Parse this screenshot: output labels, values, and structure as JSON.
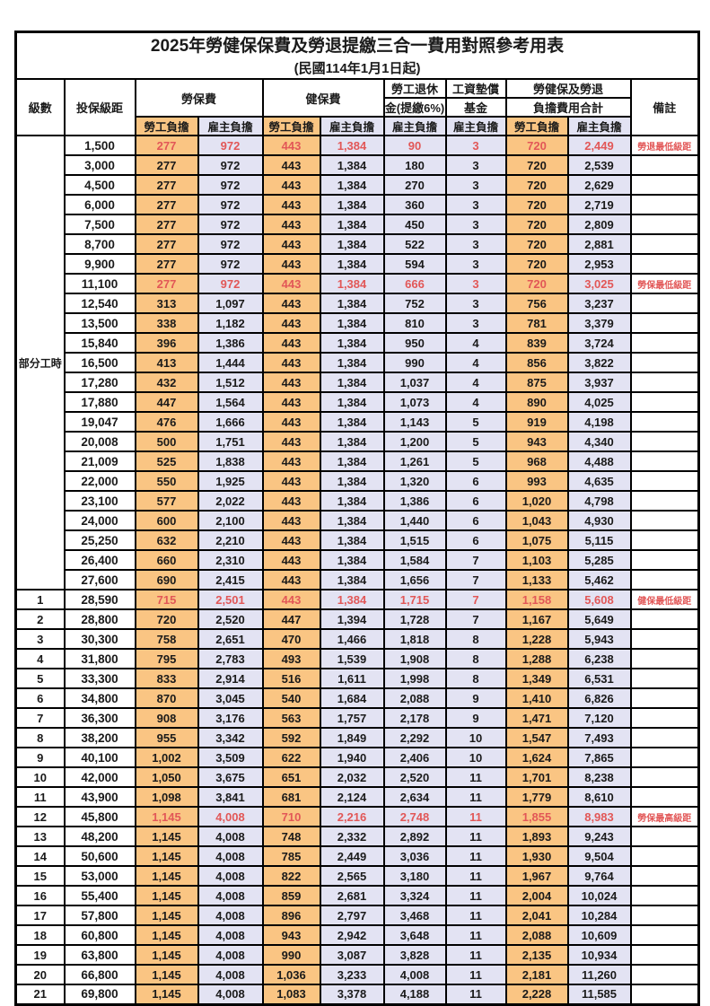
{
  "table": {
    "title": "2025年勞健保保費及勞退提繳三合一費用對照參考用表",
    "subtitle": "(民國114年1月1日起)",
    "headers": {
      "level": "級數",
      "bracket": "投保級距",
      "labor_insurance": "勞保費",
      "health_insurance": "健保費",
      "pension_line1": "勞工退休",
      "pension_line2": "金(提繳6%)",
      "wage_fund_line1": "工資墊償",
      "wage_fund_line2": "基金",
      "total_line1": "勞健保及勞退",
      "total_line2": "負擔費用合計",
      "remark": "備註",
      "employee": "勞工負擔",
      "employer": "雇主負擔"
    },
    "part_time_label": "部分工時",
    "part_time_span": 23,
    "value_column_keys": [
      "labor-employee",
      "labor-employer",
      "health-employee",
      "health-employer",
      "pension-employer",
      "fund-employer",
      "total-employee",
      "total-employer"
    ],
    "rows": [
      {
        "level": null,
        "bracket": "1,500",
        "values": [
          "277",
          "972",
          "443",
          "1,384",
          "90",
          "3",
          "720",
          "2,449"
        ],
        "note": "勞退最低級距",
        "highlight": true
      },
      {
        "level": null,
        "bracket": "3,000",
        "values": [
          "277",
          "972",
          "443",
          "1,384",
          "180",
          "3",
          "720",
          "2,539"
        ],
        "note": "",
        "highlight": false
      },
      {
        "level": null,
        "bracket": "4,500",
        "values": [
          "277",
          "972",
          "443",
          "1,384",
          "270",
          "3",
          "720",
          "2,629"
        ],
        "note": "",
        "highlight": false
      },
      {
        "level": null,
        "bracket": "6,000",
        "values": [
          "277",
          "972",
          "443",
          "1,384",
          "360",
          "3",
          "720",
          "2,719"
        ],
        "note": "",
        "highlight": false
      },
      {
        "level": null,
        "bracket": "7,500",
        "values": [
          "277",
          "972",
          "443",
          "1,384",
          "450",
          "3",
          "720",
          "2,809"
        ],
        "note": "",
        "highlight": false
      },
      {
        "level": null,
        "bracket": "8,700",
        "values": [
          "277",
          "972",
          "443",
          "1,384",
          "522",
          "3",
          "720",
          "2,881"
        ],
        "note": "",
        "highlight": false
      },
      {
        "level": null,
        "bracket": "9,900",
        "values": [
          "277",
          "972",
          "443",
          "1,384",
          "594",
          "3",
          "720",
          "2,953"
        ],
        "note": "",
        "highlight": false
      },
      {
        "level": null,
        "bracket": "11,100",
        "values": [
          "277",
          "972",
          "443",
          "1,384",
          "666",
          "3",
          "720",
          "3,025"
        ],
        "note": "勞保最低級距",
        "highlight": true
      },
      {
        "level": null,
        "bracket": "12,540",
        "values": [
          "313",
          "1,097",
          "443",
          "1,384",
          "752",
          "3",
          "756",
          "3,237"
        ],
        "note": "",
        "highlight": false
      },
      {
        "level": null,
        "bracket": "13,500",
        "values": [
          "338",
          "1,182",
          "443",
          "1,384",
          "810",
          "3",
          "781",
          "3,379"
        ],
        "note": "",
        "highlight": false
      },
      {
        "level": null,
        "bracket": "15,840",
        "values": [
          "396",
          "1,386",
          "443",
          "1,384",
          "950",
          "4",
          "839",
          "3,724"
        ],
        "note": "",
        "highlight": false
      },
      {
        "level": null,
        "bracket": "16,500",
        "values": [
          "413",
          "1,444",
          "443",
          "1,384",
          "990",
          "4",
          "856",
          "3,822"
        ],
        "note": "",
        "highlight": false
      },
      {
        "level": null,
        "bracket": "17,280",
        "values": [
          "432",
          "1,512",
          "443",
          "1,384",
          "1,037",
          "4",
          "875",
          "3,937"
        ],
        "note": "",
        "highlight": false
      },
      {
        "level": null,
        "bracket": "17,880",
        "values": [
          "447",
          "1,564",
          "443",
          "1,384",
          "1,073",
          "4",
          "890",
          "4,025"
        ],
        "note": "",
        "highlight": false
      },
      {
        "level": null,
        "bracket": "19,047",
        "values": [
          "476",
          "1,666",
          "443",
          "1,384",
          "1,143",
          "5",
          "919",
          "4,198"
        ],
        "note": "",
        "highlight": false
      },
      {
        "level": null,
        "bracket": "20,008",
        "values": [
          "500",
          "1,751",
          "443",
          "1,384",
          "1,200",
          "5",
          "943",
          "4,340"
        ],
        "note": "",
        "highlight": false
      },
      {
        "level": null,
        "bracket": "21,009",
        "values": [
          "525",
          "1,838",
          "443",
          "1,384",
          "1,261",
          "5",
          "968",
          "4,488"
        ],
        "note": "",
        "highlight": false
      },
      {
        "level": null,
        "bracket": "22,000",
        "values": [
          "550",
          "1,925",
          "443",
          "1,384",
          "1,320",
          "6",
          "993",
          "4,635"
        ],
        "note": "",
        "highlight": false
      },
      {
        "level": null,
        "bracket": "23,100",
        "values": [
          "577",
          "2,022",
          "443",
          "1,384",
          "1,386",
          "6",
          "1,020",
          "4,798"
        ],
        "note": "",
        "highlight": false
      },
      {
        "level": null,
        "bracket": "24,000",
        "values": [
          "600",
          "2,100",
          "443",
          "1,384",
          "1,440",
          "6",
          "1,043",
          "4,930"
        ],
        "note": "",
        "highlight": false
      },
      {
        "level": null,
        "bracket": "25,250",
        "values": [
          "632",
          "2,210",
          "443",
          "1,384",
          "1,515",
          "6",
          "1,075",
          "5,115"
        ],
        "note": "",
        "highlight": false
      },
      {
        "level": null,
        "bracket": "26,400",
        "values": [
          "660",
          "2,310",
          "443",
          "1,384",
          "1,584",
          "7",
          "1,103",
          "5,285"
        ],
        "note": "",
        "highlight": false
      },
      {
        "level": null,
        "bracket": "27,600",
        "values": [
          "690",
          "2,415",
          "443",
          "1,384",
          "1,656",
          "7",
          "1,133",
          "5,462"
        ],
        "note": "",
        "highlight": false
      },
      {
        "level": "1",
        "bracket": "28,590",
        "values": [
          "715",
          "2,501",
          "443",
          "1,384",
          "1,715",
          "7",
          "1,158",
          "5,608"
        ],
        "note": "健保最低級距",
        "highlight": true
      },
      {
        "level": "2",
        "bracket": "28,800",
        "values": [
          "720",
          "2,520",
          "447",
          "1,394",
          "1,728",
          "7",
          "1,167",
          "5,649"
        ],
        "note": "",
        "highlight": false
      },
      {
        "level": "3",
        "bracket": "30,300",
        "values": [
          "758",
          "2,651",
          "470",
          "1,466",
          "1,818",
          "8",
          "1,228",
          "5,943"
        ],
        "note": "",
        "highlight": false
      },
      {
        "level": "4",
        "bracket": "31,800",
        "values": [
          "795",
          "2,783",
          "493",
          "1,539",
          "1,908",
          "8",
          "1,288",
          "6,238"
        ],
        "note": "",
        "highlight": false
      },
      {
        "level": "5",
        "bracket": "33,300",
        "values": [
          "833",
          "2,914",
          "516",
          "1,611",
          "1,998",
          "8",
          "1,349",
          "6,531"
        ],
        "note": "",
        "highlight": false
      },
      {
        "level": "6",
        "bracket": "34,800",
        "values": [
          "870",
          "3,045",
          "540",
          "1,684",
          "2,088",
          "9",
          "1,410",
          "6,826"
        ],
        "note": "",
        "highlight": false
      },
      {
        "level": "7",
        "bracket": "36,300",
        "values": [
          "908",
          "3,176",
          "563",
          "1,757",
          "2,178",
          "9",
          "1,471",
          "7,120"
        ],
        "note": "",
        "highlight": false
      },
      {
        "level": "8",
        "bracket": "38,200",
        "values": [
          "955",
          "3,342",
          "592",
          "1,849",
          "2,292",
          "10",
          "1,547",
          "7,493"
        ],
        "note": "",
        "highlight": false
      },
      {
        "level": "9",
        "bracket": "40,100",
        "values": [
          "1,002",
          "3,509",
          "622",
          "1,940",
          "2,406",
          "10",
          "1,624",
          "7,865"
        ],
        "note": "",
        "highlight": false
      },
      {
        "level": "10",
        "bracket": "42,000",
        "values": [
          "1,050",
          "3,675",
          "651",
          "2,032",
          "2,520",
          "11",
          "1,701",
          "8,238"
        ],
        "note": "",
        "highlight": false
      },
      {
        "level": "11",
        "bracket": "43,900",
        "values": [
          "1,098",
          "3,841",
          "681",
          "2,124",
          "2,634",
          "11",
          "1,779",
          "8,610"
        ],
        "note": "",
        "highlight": false
      },
      {
        "level": "12",
        "bracket": "45,800",
        "values": [
          "1,145",
          "4,008",
          "710",
          "2,216",
          "2,748",
          "11",
          "1,855",
          "8,983"
        ],
        "note": "勞保最高級距",
        "highlight": true
      },
      {
        "level": "13",
        "bracket": "48,200",
        "values": [
          "1,145",
          "4,008",
          "748",
          "2,332",
          "2,892",
          "11",
          "1,893",
          "9,243"
        ],
        "note": "",
        "highlight": false
      },
      {
        "level": "14",
        "bracket": "50,600",
        "values": [
          "1,145",
          "4,008",
          "785",
          "2,449",
          "3,036",
          "11",
          "1,930",
          "9,504"
        ],
        "note": "",
        "highlight": false
      },
      {
        "level": "15",
        "bracket": "53,000",
        "values": [
          "1,145",
          "4,008",
          "822",
          "2,565",
          "3,180",
          "11",
          "1,967",
          "9,764"
        ],
        "note": "",
        "highlight": false
      },
      {
        "level": "16",
        "bracket": "55,400",
        "values": [
          "1,145",
          "4,008",
          "859",
          "2,681",
          "3,324",
          "11",
          "2,004",
          "10,024"
        ],
        "note": "",
        "highlight": false
      },
      {
        "level": "17",
        "bracket": "57,800",
        "values": [
          "1,145",
          "4,008",
          "896",
          "2,797",
          "3,468",
          "11",
          "2,041",
          "10,284"
        ],
        "note": "",
        "highlight": false
      },
      {
        "level": "18",
        "bracket": "60,800",
        "values": [
          "1,145",
          "4,008",
          "943",
          "2,942",
          "3,648",
          "11",
          "2,088",
          "10,609"
        ],
        "note": "",
        "highlight": false
      },
      {
        "level": "19",
        "bracket": "63,800",
        "values": [
          "1,145",
          "4,008",
          "990",
          "3,087",
          "3,828",
          "11",
          "2,135",
          "10,934"
        ],
        "note": "",
        "highlight": false
      },
      {
        "level": "20",
        "bracket": "66,800",
        "values": [
          "1,145",
          "4,008",
          "1,036",
          "3,233",
          "4,008",
          "11",
          "2,181",
          "11,260"
        ],
        "note": "",
        "highlight": false
      },
      {
        "level": "21",
        "bracket": "69,800",
        "values": [
          "1,145",
          "4,008",
          "1,083",
          "3,378",
          "4,188",
          "11",
          "2,228",
          "11,585"
        ],
        "note": "",
        "highlight": false
      }
    ]
  },
  "colors": {
    "employee_column_bg": "#FAC583",
    "employer_column_bg": "#E3E3F3",
    "highlight_text": "#E25757",
    "border": "#000000"
  }
}
